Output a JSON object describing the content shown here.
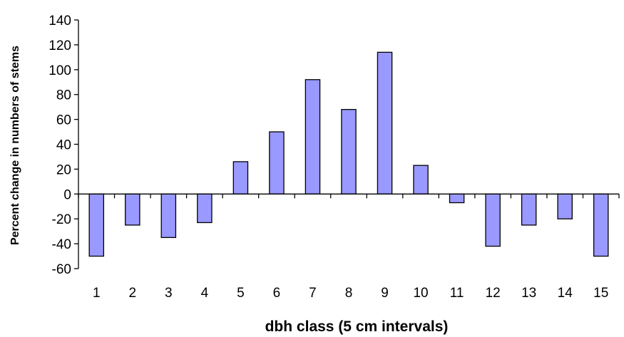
{
  "chart_data": {
    "type": "bar",
    "title": "",
    "xlabel": "dbh class (5 cm intervals)",
    "ylabel": "Percent change in numbers of stems",
    "categories": [
      "1",
      "2",
      "3",
      "4",
      "5",
      "6",
      "7",
      "8",
      "9",
      "10",
      "11",
      "12",
      "13",
      "14",
      "15"
    ],
    "values": [
      -50,
      -25,
      -35,
      -23,
      26,
      50,
      92,
      68,
      114,
      23,
      -7,
      -42,
      -25,
      -20,
      -50
    ],
    "ylim": [
      -60,
      140
    ],
    "yticks": [
      140,
      120,
      100,
      80,
      60,
      40,
      20,
      0,
      -20,
      -40,
      -60
    ],
    "grid": false,
    "legend": "none",
    "bar_color": "#9999ff",
    "bar_stroke": "#000000"
  }
}
